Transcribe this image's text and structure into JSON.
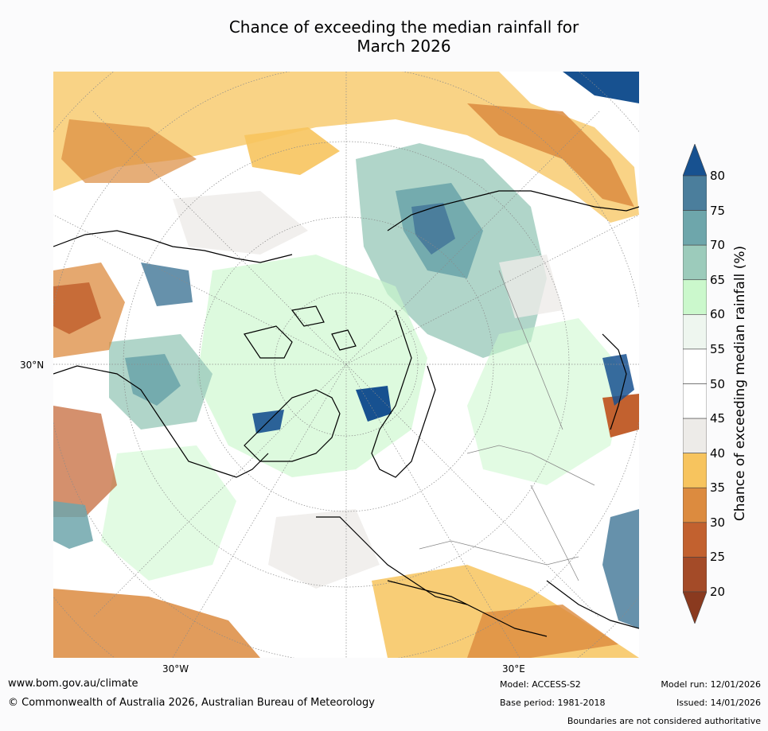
{
  "title_line1": "Chance of exceeding the median rainfall for",
  "title_line2": "March 2026",
  "map": {
    "lat_label": "30°N",
    "lon_labels": [
      "30°W",
      "30°E"
    ],
    "land_tint": "#c9f7cd",
    "colors": {
      "wet_strong": "#175190",
      "wet_mid": "#4b7e9c",
      "wet": "#6ea6ab",
      "wet_light": "#9ccbbb",
      "wet_pale": "#cbf8cc",
      "near_neutral": "#eef6ef",
      "neutral": "#ffffff",
      "dry_light": "#edebe8",
      "dry": "#f7c45e",
      "dry_mid": "#dc8b3f",
      "dry_strong": "#c2612f",
      "dry_extreme": "#a44b28"
    }
  },
  "colorbar": {
    "title": "Chance of exceeding median rainfall (%)",
    "ticks": [
      "80",
      "75",
      "70",
      "65",
      "60",
      "55",
      "50",
      "45",
      "40",
      "35",
      "30",
      "25",
      "20"
    ],
    "colors": [
      "#175190",
      "#4b7e9c",
      "#6ea6ab",
      "#9ccbbb",
      "#cbf8cc",
      "#eef6ef",
      "#ffffff",
      "#ffffff",
      "#edebe8",
      "#f7c45e",
      "#dc8b3f",
      "#c2612f",
      "#a44b28",
      "#8a3a1f"
    ]
  },
  "footer": {
    "website": "www.bom.gov.au/climate",
    "copyright": "© Commonwealth of Australia 2026, Australian Bureau of Meteorology",
    "model": "Model: ACCESS-S2",
    "base_period": "Base period: 1981-2018",
    "model_run": "Model run: 12/01/2026",
    "issued": "Issued: 14/01/2026",
    "disclaimer": "Boundaries are not considered authoritative"
  }
}
